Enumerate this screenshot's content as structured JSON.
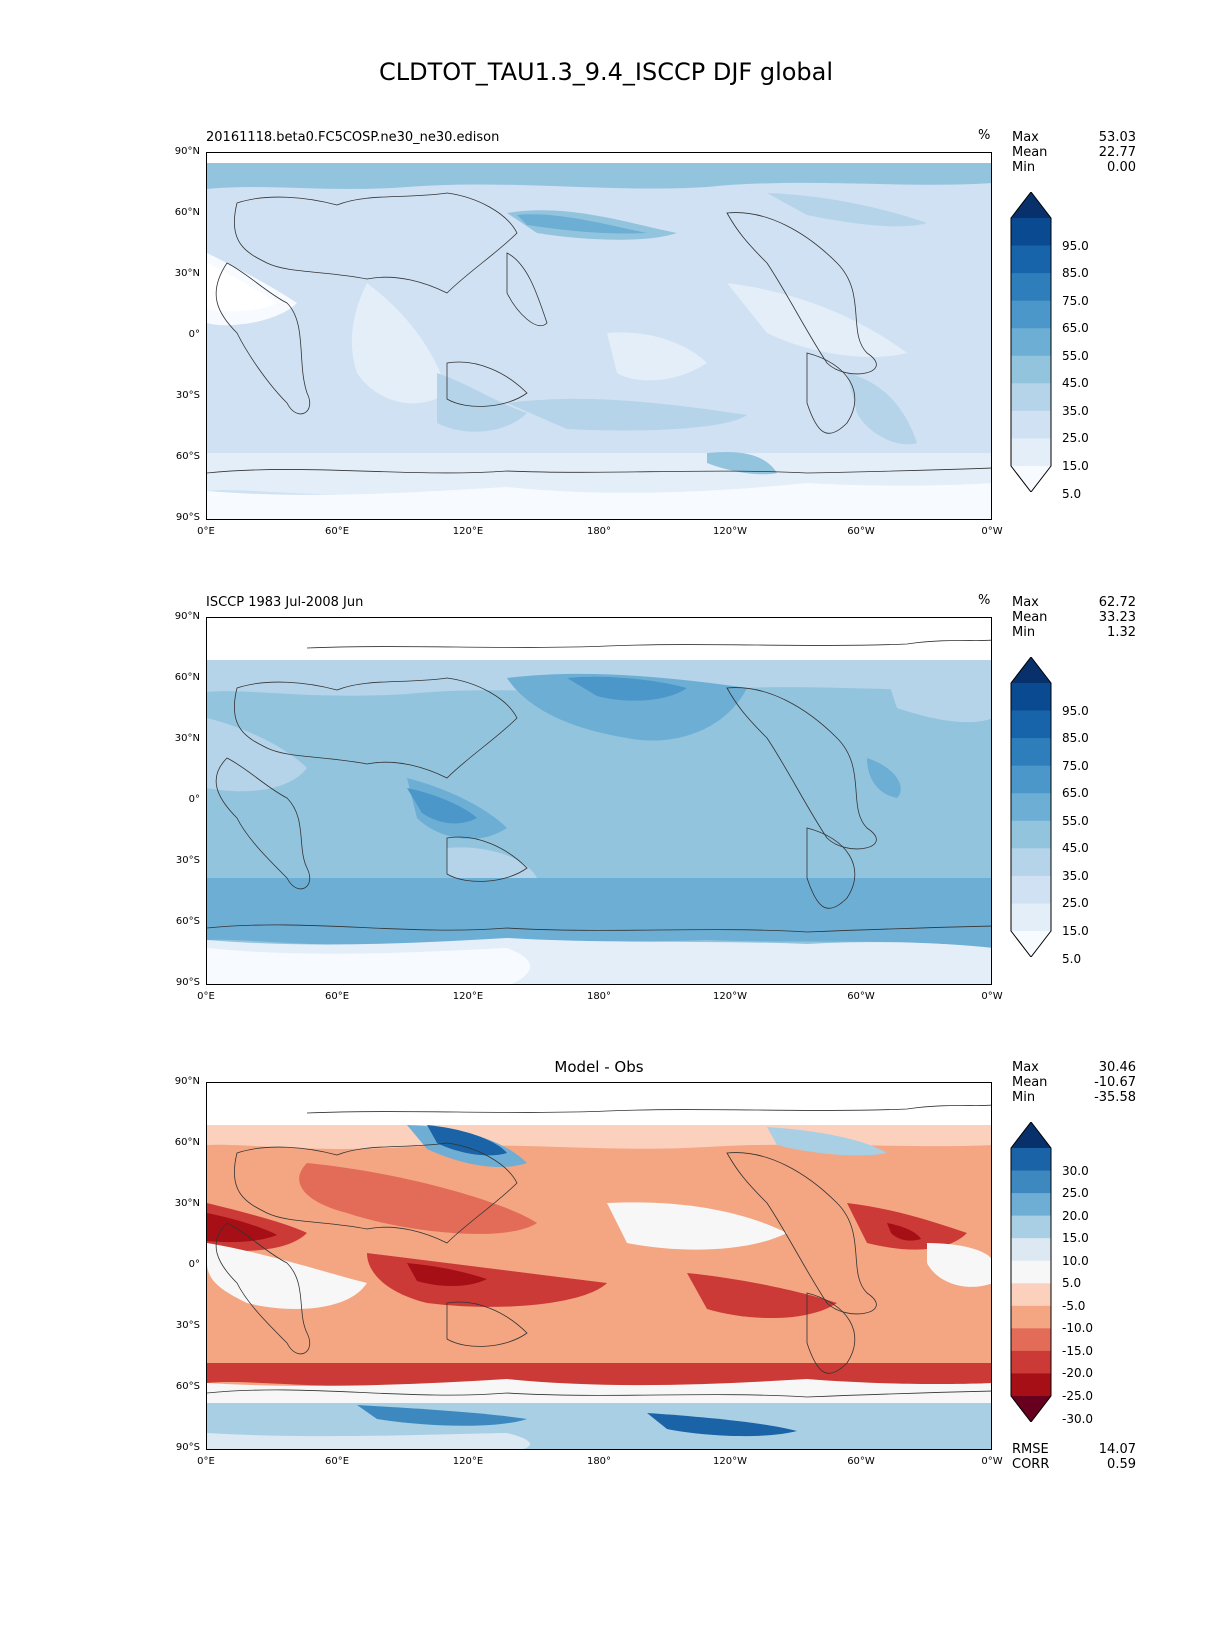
{
  "figure": {
    "title": "CLDTOT_TAU1.3_9.4_ISCCP DJF global"
  },
  "axes": {
    "y_ticks": [
      "90°N",
      "60°N",
      "30°N",
      "0°",
      "30°S",
      "60°S",
      "90°S"
    ],
    "x_ticks": [
      "0°E",
      "60°E",
      "120°E",
      "180°",
      "120°W",
      "60°W",
      "0°W"
    ]
  },
  "panels": [
    {
      "title": "20161118.beta0.FC5COSP.ne30_ne30.edison",
      "units": "%",
      "stats": [
        {
          "label": "Max",
          "value": "53.03"
        },
        {
          "label": "Mean",
          "value": "22.77"
        },
        {
          "label": "Min",
          "value": "0.00"
        }
      ],
      "colorbar_labels": [
        "95.0",
        "85.0",
        "75.0",
        "65.0",
        "55.0",
        "45.0",
        "35.0",
        "25.0",
        "15.0",
        "5.0"
      ]
    },
    {
      "title": "ISCCP 1983 Jul-2008 Jun",
      "units": "%",
      "stats": [
        {
          "label": "Max",
          "value": "62.72"
        },
        {
          "label": "Mean",
          "value": "33.23"
        },
        {
          "label": "Min",
          "value": "1.32"
        }
      ],
      "colorbar_labels": [
        "95.0",
        "85.0",
        "75.0",
        "65.0",
        "55.0",
        "45.0",
        "35.0",
        "25.0",
        "15.0",
        "5.0"
      ]
    },
    {
      "title": "Model - Obs",
      "stats": [
        {
          "label": "Max",
          "value": "30.46"
        },
        {
          "label": "Mean",
          "value": "-10.67"
        },
        {
          "label": "Min",
          "value": "-35.58"
        }
      ],
      "colorbar_labels": [
        "30.0",
        "25.0",
        "20.0",
        "15.0",
        "10.0",
        "5.0",
        "-5.0",
        "-10.0",
        "-15.0",
        "-20.0",
        "-25.0",
        "-30.0"
      ],
      "extra_stats": [
        {
          "label": "RMSE",
          "value": "14.07"
        },
        {
          "label": "CORR",
          "value": "0.59"
        }
      ]
    }
  ],
  "colors": {
    "blues": [
      "#f7fbff",
      "#e3eef9",
      "#cfe1f2",
      "#b5d4e9",
      "#93c4de",
      "#6daed5",
      "#4b97c9",
      "#2f7ebc",
      "#1864aa",
      "#0a4a90",
      "#08306b"
    ],
    "diverging": [
      "#67001f",
      "#a50f15",
      "#cb3a36",
      "#e26c57",
      "#f4a582",
      "#fbd0bd",
      "#f7f7f7",
      "#dce9f2",
      "#a9cfe5",
      "#6faed4",
      "#3c88bf",
      "#1a63a6",
      "#08306b"
    ]
  }
}
